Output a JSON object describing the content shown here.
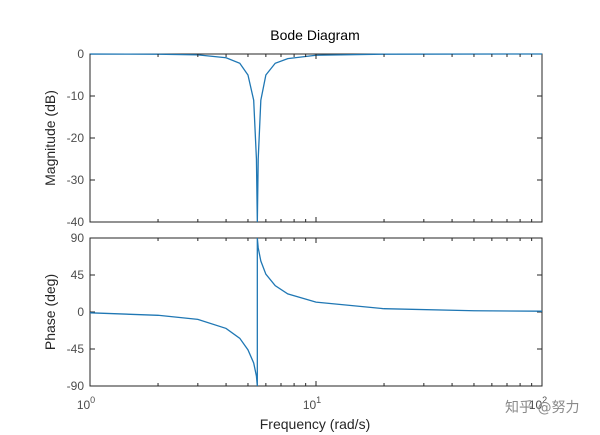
{
  "watermark": "知乎 @努力",
  "chart_data": {
    "type": "line",
    "title": "Bode Diagram",
    "xlabel": "Frequency  (rad/s)",
    "xscale": "log",
    "xlim": [
      1,
      100
    ],
    "x_ticks": [
      {
        "value": 1,
        "base": "10",
        "exp": "0"
      },
      {
        "value": 10,
        "base": "10",
        "exp": "1"
      },
      {
        "value": 100,
        "base": "10",
        "exp": "2"
      }
    ],
    "grid": false,
    "line_color": "#1f77b4",
    "notch": {
      "frequency": 5.5,
      "quality": 4
    },
    "magnitude": {
      "ylabel": "Magnitude (dB)",
      "ylim": [
        -40,
        0
      ],
      "yticks": [
        "0",
        "-10",
        "-20",
        "-30",
        "-40"
      ],
      "points": [
        [
          1,
          -0.01
        ],
        [
          2,
          -0.06
        ],
        [
          3,
          -0.2
        ],
        [
          4,
          -0.9
        ],
        [
          4.6,
          -2.2
        ],
        [
          5,
          -5
        ],
        [
          5.3,
          -11
        ],
        [
          5.45,
          -25
        ],
        [
          5.5,
          -40
        ],
        [
          5.55,
          -25
        ],
        [
          5.7,
          -11
        ],
        [
          6,
          -5
        ],
        [
          6.6,
          -2.2
        ],
        [
          7.5,
          -1.1
        ],
        [
          10,
          -0.3
        ],
        [
          20,
          -0.04
        ],
        [
          100,
          0
        ]
      ]
    },
    "phase": {
      "ylabel": "Phase (deg)",
      "ylim": [
        -90,
        90
      ],
      "yticks": [
        "90",
        "45",
        "0",
        "-45",
        "-90"
      ],
      "points": [
        [
          1,
          -1
        ],
        [
          2,
          -4
        ],
        [
          3,
          -9
        ],
        [
          4,
          -20
        ],
        [
          4.6,
          -32
        ],
        [
          5,
          -46
        ],
        [
          5.3,
          -62
        ],
        [
          5.45,
          -78
        ],
        [
          5.5,
          -90
        ],
        [
          5.5,
          90
        ],
        [
          5.55,
          78
        ],
        [
          5.7,
          62
        ],
        [
          6,
          46
        ],
        [
          6.6,
          32
        ],
        [
          7.5,
          22
        ],
        [
          10,
          12
        ],
        [
          20,
          4
        ],
        [
          50,
          1.5
        ],
        [
          100,
          1
        ]
      ]
    }
  }
}
